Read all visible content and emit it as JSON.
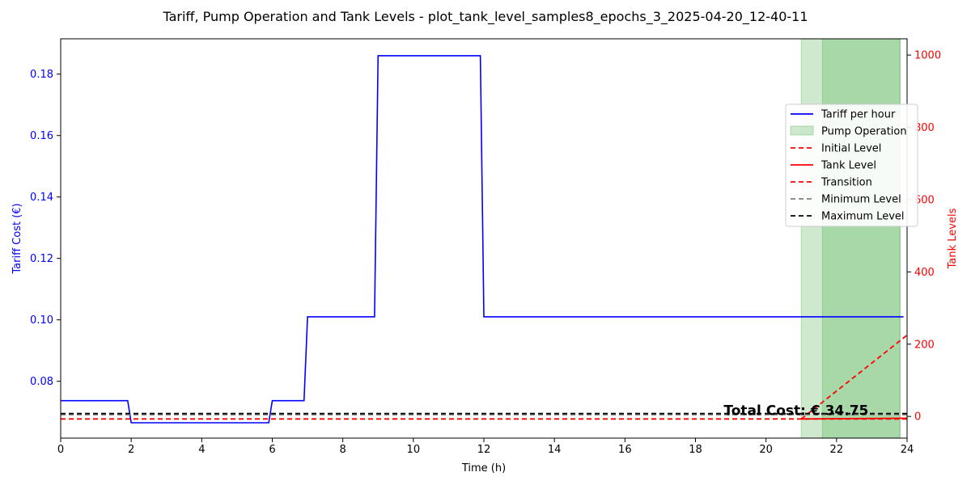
{
  "chart_data": {
    "type": "line",
    "title": "Tariff, Pump Operation and Tank Levels - plot_tank_level_samples8_epochs_3_2025-04-20_12-40-11",
    "xlabel": "Time (h)",
    "ylabel_left": "Tariff Cost (€)",
    "ylabel_right": "Tank Levels",
    "xlim": [
      0,
      24
    ],
    "ylim_left": [
      0.0615,
      0.1915
    ],
    "ylim_right": [
      -60,
      1045
    ],
    "xticks": [
      0,
      2,
      4,
      6,
      8,
      10,
      12,
      14,
      16,
      18,
      20,
      22,
      24
    ],
    "xtick_labels": [
      "0",
      "2",
      "4",
      "6",
      "8",
      "10",
      "12",
      "14",
      "16",
      "18",
      "20",
      "22",
      "24"
    ],
    "yticks_left": [
      0.08,
      0.1,
      0.12,
      0.14,
      0.16,
      0.18
    ],
    "ytick_labels_left": [
      "0.08",
      "0.10",
      "0.12",
      "0.14",
      "0.16",
      "0.18"
    ],
    "yticks_right": [
      0,
      200,
      400,
      600,
      800,
      1000
    ],
    "ytick_labels_right": [
      "0",
      "200",
      "400",
      "600",
      "800",
      "1000"
    ],
    "left_axis_color": "#0000ff",
    "right_axis_color": "#ff0000",
    "grid": false,
    "legend_position": "right",
    "legend": [
      {
        "label": "Tariff per hour",
        "style": "line",
        "color": "#0000ff"
      },
      {
        "label": "Pump Operation",
        "style": "patch",
        "color": "#2ca02c"
      },
      {
        "label": "Initial Level",
        "style": "dashed",
        "color": "#ff0000"
      },
      {
        "label": "Tank Level",
        "style": "line",
        "color": "#ff0000"
      },
      {
        "label": "Transition",
        "style": "dashed",
        "color": "#ff0000"
      },
      {
        "label": "Minimum Level",
        "style": "dashed",
        "color": "#808080"
      },
      {
        "label": "Maximum Level",
        "style": "dashed",
        "color": "#000000"
      }
    ],
    "series": [
      {
        "name": "Tariff per hour",
        "axis": "left",
        "color": "#0000ff",
        "x": [
          0,
          1.9,
          2.0,
          5.9,
          6.0,
          6.9,
          7.0,
          8.9,
          9.0,
          11.9,
          12.0,
          23.9
        ],
        "y": [
          0.0737,
          0.0737,
          0.0665,
          0.0665,
          0.0737,
          0.0737,
          0.101,
          0.101,
          0.186,
          0.186,
          0.101,
          0.101
        ]
      },
      {
        "name": "Initial Level",
        "axis": "right",
        "color": "#ff0000",
        "dash": true,
        "x": [
          0,
          24
        ],
        "y": [
          -7,
          -7
        ]
      },
      {
        "name": "Tank Level",
        "axis": "right",
        "color": "#ff0000",
        "dash": false,
        "x": [
          21.0,
          24
        ],
        "y": [
          -7,
          -5
        ]
      },
      {
        "name": "Transition",
        "axis": "right",
        "color": "#ff0000",
        "dash": true,
        "x": [
          21.0,
          24
        ],
        "y": [
          -7,
          225
        ]
      },
      {
        "name": "Minimum Level",
        "axis": "right",
        "color": "#808080",
        "dash": true,
        "x": [
          0,
          24
        ],
        "y": [
          5,
          5
        ]
      },
      {
        "name": "Maximum Level",
        "axis": "right",
        "color": "#000000",
        "dash": true,
        "x": [
          0,
          24
        ],
        "y": [
          8,
          8
        ]
      }
    ],
    "pump_operation": [
      {
        "start": 21.0,
        "end": 23.8
      },
      {
        "start": 21.6,
        "end": 23.8
      }
    ],
    "annotation": {
      "text": "Total Cost: € 34.75",
      "x": 18.8,
      "y_right": 8
    }
  }
}
